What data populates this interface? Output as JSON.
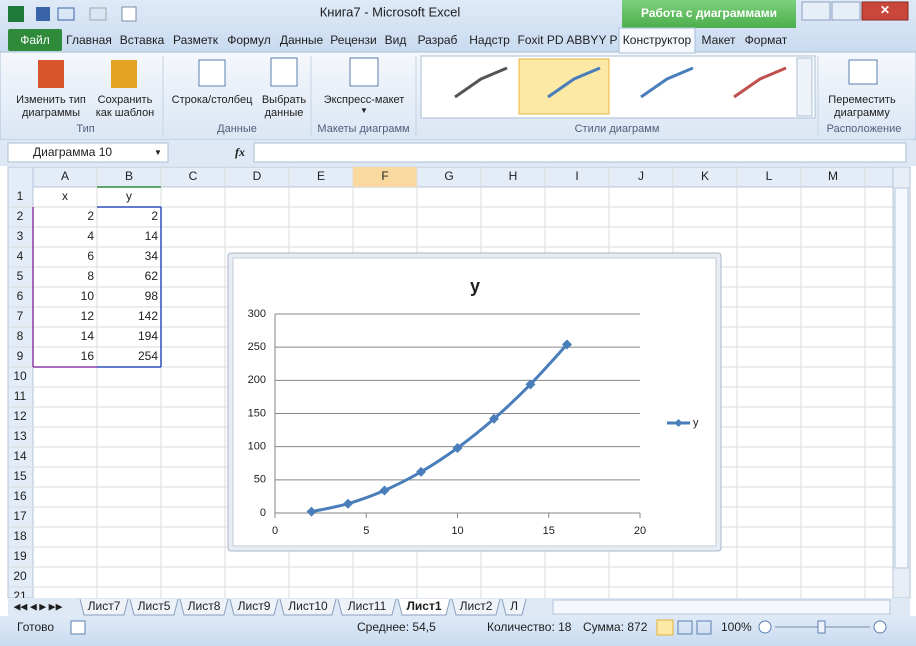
{
  "window": {
    "title": "Книга7  -  Microsoft Excel",
    "context_tab": "Работа с диаграммами"
  },
  "ribbon": {
    "tabs": [
      "Файл",
      "Главная",
      "Вставка",
      "Разметк",
      "Формул",
      "Данные",
      "Рецензи",
      "Вид",
      "Разраб",
      "Надстр",
      "Foxit PD",
      "ABBYY P",
      "Конструктор",
      "Макет",
      "Формат"
    ],
    "groups": [
      {
        "label": "Тип",
        "buttons": [
          [
            "Изменить тип",
            "диаграммы"
          ],
          [
            "Сохранить",
            "как шаблон"
          ]
        ]
      },
      {
        "label": "Данные",
        "buttons": [
          [
            "Строка/столбец"
          ],
          [
            "Выбрать",
            "данные"
          ]
        ]
      },
      {
        "label": "Макеты диаграмм",
        "buttons": [
          [
            "Экспресс-макет"
          ]
        ]
      },
      {
        "label": "Стили диаграмм",
        "buttons": []
      },
      {
        "label": "Расположение",
        "buttons": [
          [
            "Переместить",
            "диаграмму"
          ]
        ]
      }
    ]
  },
  "formula_bar": {
    "name_box": "Диаграмма 10",
    "fx": "fx"
  },
  "sheet": {
    "columns": [
      "A",
      "B",
      "C",
      "D",
      "E",
      "F",
      "G",
      "H",
      "I",
      "J",
      "K",
      "L",
      "M"
    ],
    "rows": [
      1,
      2,
      3,
      4,
      5,
      6,
      7,
      8,
      9,
      10,
      11,
      12,
      13,
      14,
      15,
      16,
      17,
      18,
      19,
      20,
      21
    ],
    "cells": [
      [
        "x",
        "y"
      ],
      [
        2,
        2
      ],
      [
        4,
        14
      ],
      [
        6,
        34
      ],
      [
        8,
        62
      ],
      [
        10,
        98
      ],
      [
        12,
        142
      ],
      [
        14,
        194
      ],
      [
        16,
        254
      ]
    ]
  },
  "chart_data": {
    "type": "line",
    "title": "y",
    "x": [
      2,
      4,
      6,
      8,
      10,
      12,
      14,
      16
    ],
    "series": [
      {
        "name": "y",
        "color": "#4a7ebb",
        "values": [
          2,
          14,
          34,
          62,
          98,
          142,
          194,
          254
        ]
      }
    ],
    "xlim": [
      0,
      20
    ],
    "xticks": [
      0,
      5,
      10,
      15,
      20
    ],
    "ylim": [
      0,
      300
    ],
    "yticks": [
      0,
      50,
      100,
      150,
      200,
      250,
      300
    ],
    "grid": true,
    "smooth": true,
    "legend": "right"
  },
  "sheet_tabs": [
    "Лист7",
    "Лист5",
    "Лист8",
    "Лист9",
    "Лист10",
    "Лист11",
    "Лист1",
    "Лист2",
    "Л"
  ],
  "status_bar": {
    "ready": "Готово",
    "average": "Среднее: 54,5",
    "count": "Количество: 18",
    "sum": "Сумма: 872",
    "zoom": "100%"
  }
}
